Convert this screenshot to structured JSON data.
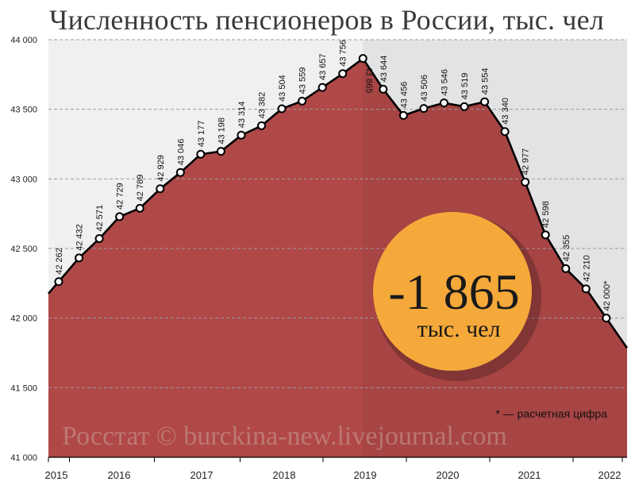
{
  "title": "Численность пенсионеров в России, тыс. чел",
  "badge": {
    "value": "-1 865",
    "unit": "тыс. чел",
    "color": "#f5a93a"
  },
  "footnote": "* — расчетная цифра",
  "watermark": "Росстат © burckina-new.livejournal.com",
  "colors": {
    "area": "#b04848",
    "bg_left": "#f0f0f0",
    "bg_right": "#e3e3e3",
    "line": "#000000"
  },
  "chart_data": {
    "type": "area",
    "title": "Численность пенсионеров в России, тыс. чел",
    "xlabel": "",
    "ylabel": "",
    "ylim": [
      41000,
      44000
    ],
    "yticks": [
      41000,
      41500,
      42000,
      42500,
      43000,
      43500,
      44000
    ],
    "ytick_labels": [
      "41 000",
      "41 500",
      "42 000",
      "42 500",
      "43 000",
      "43 500",
      "44 000"
    ],
    "year_labels": [
      "2015",
      "2016",
      "2017",
      "2018",
      "2019",
      "2020",
      "2021",
      "2022"
    ],
    "grid": true,
    "series": [
      {
        "values": [
          42262,
          42432,
          42571,
          42729,
          42789,
          42929,
          43046,
          43177,
          43198,
          43314,
          43382,
          43504,
          43559,
          43657,
          43756,
          43865,
          43644,
          43456,
          43506,
          43546,
          43519,
          43554,
          43340,
          42977,
          42598,
          42355,
          42210,
          42000
        ],
        "labels": [
          "42 262",
          "42 432",
          "42 571",
          "42 729",
          "42 789",
          "42 929",
          "43 046",
          "43 177",
          "43 198",
          "43 314",
          "43 382",
          "43 504",
          "43 559",
          "43 657",
          "43 756",
          "43 865",
          "43 644",
          "43 456",
          "43 506",
          "43 546",
          "43 519",
          "43 554",
          "43 340",
          "42 977",
          "42 598",
          "42 355",
          "42 210",
          "42 000*"
        ]
      }
    ],
    "annotations": [
      "* — расчетная цифра"
    ]
  }
}
